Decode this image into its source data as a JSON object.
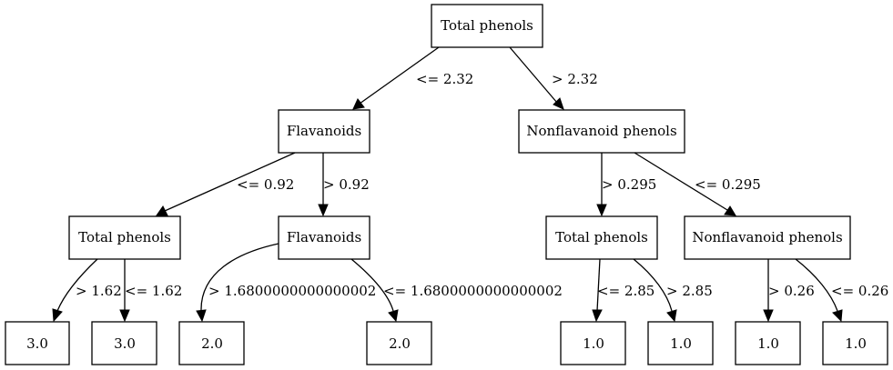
{
  "nodes": {
    "root": "Total phenols",
    "l1_left": "Flavanoids",
    "l1_right": "Nonflavanoid phenols",
    "l2_a": "Total phenols",
    "l2_b": "Flavanoids",
    "l2_c": "Total phenols",
    "l2_d": "Nonflavanoid phenols",
    "leaf_1": "3.0",
    "leaf_2": "3.0",
    "leaf_3": "2.0",
    "leaf_4": "2.0",
    "leaf_5": "1.0",
    "leaf_6": "1.0",
    "leaf_7": "1.0",
    "leaf_8": "1.0"
  },
  "edges": {
    "root_to_l1_left": "<= 2.32",
    "root_to_l1_right": "> 2.32",
    "l1_left_to_l2_a": "<= 0.92",
    "l1_left_to_l2_b": "> 0.92",
    "l1_right_to_l2_c": "> 0.295",
    "l1_right_to_l2_d": "<= 0.295",
    "l2_a_to_leaf_1": "> 1.62",
    "l2_a_to_leaf_2": "<= 1.62",
    "l2_b_to_leaf_3": "> 1.6800000000000002",
    "l2_b_to_leaf_4": "<= 1.6800000000000002",
    "l2_c_to_leaf_5": "<= 2.85",
    "l2_c_to_leaf_6": "> 2.85",
    "l2_d_to_leaf_7": "> 0.26",
    "l2_d_to_leaf_8": "<= 0.26"
  }
}
